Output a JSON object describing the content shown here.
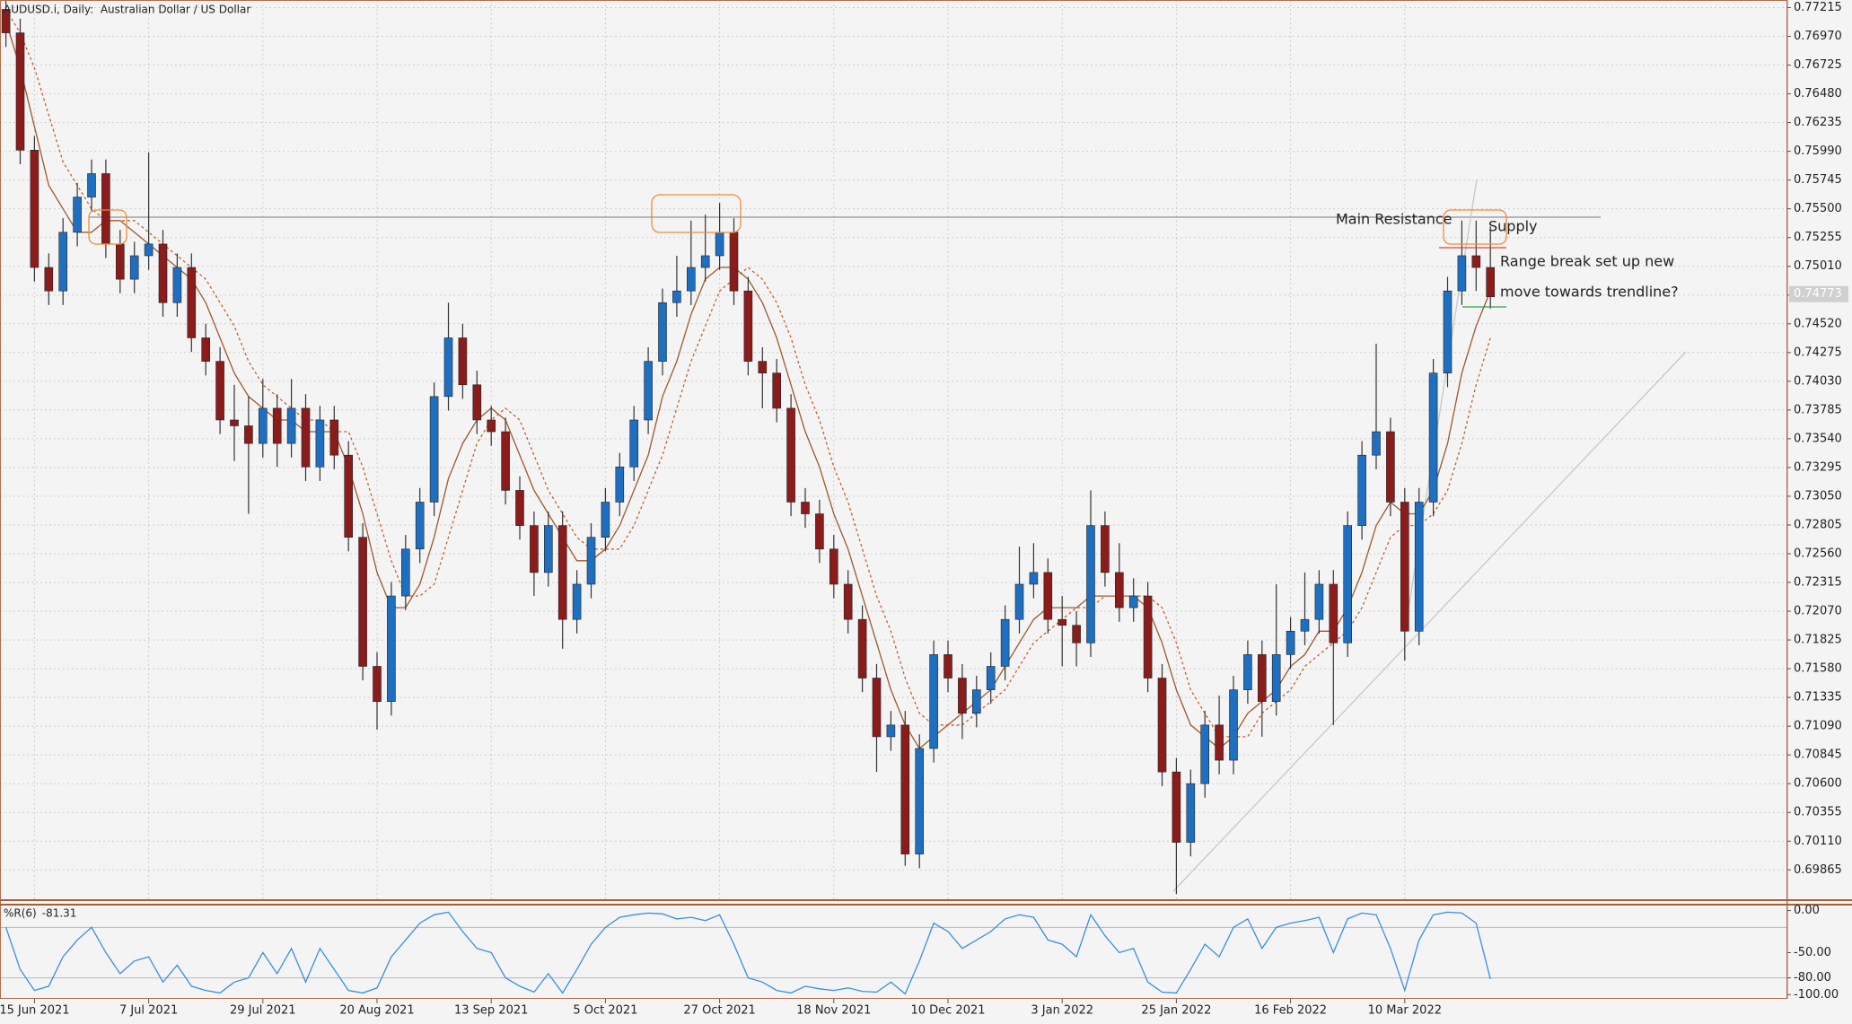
{
  "chart_data": [
    {
      "type": "candlestick",
      "title": "AUDUSD.i, Daily:  Australian Dollar / US Dollar",
      "categories": [
        null,
        null,
        "15 Jun 2021",
        null,
        null,
        null,
        null,
        null,
        null,
        null,
        "7 Jul 2021",
        null,
        null,
        null,
        null,
        null,
        null,
        null,
        "29 Jul 2021",
        null,
        null,
        null,
        null,
        null,
        null,
        null,
        "20 Aug 2021",
        null,
        null,
        null,
        null,
        null,
        null,
        null,
        "13 Sep 2021",
        null,
        null,
        null,
        null,
        null,
        null,
        null,
        "5 Oct 2021",
        null,
        null,
        null,
        null,
        null,
        null,
        null,
        "27 Oct 2021",
        null,
        null,
        null,
        null,
        null,
        null,
        null,
        "18 Nov 2021",
        null,
        null,
        null,
        null,
        null,
        null,
        null,
        "10 Dec 2021",
        null,
        null,
        null,
        null,
        null,
        null,
        null,
        "3 Jan 2022",
        null,
        null,
        null,
        null,
        null,
        null,
        null,
        "25 Jan 2022",
        null,
        null,
        null,
        null,
        null,
        null,
        null,
        "16 Feb 2022",
        null,
        null,
        null,
        null,
        null,
        null,
        null,
        "10 Mar 2022",
        null,
        null,
        null,
        null,
        null,
        null
      ],
      "ohlc": [
        [
          0.772,
          0.7732,
          0.7688,
          0.77
        ],
        [
          0.77,
          0.7712,
          0.7588,
          0.76
        ],
        [
          0.76,
          0.7612,
          0.7488,
          0.75
        ],
        [
          0.75,
          0.7512,
          0.7468,
          0.748
        ],
        [
          0.748,
          0.7542,
          0.7468,
          0.753
        ],
        [
          0.753,
          0.7572,
          0.7518,
          0.756
        ],
        [
          0.756,
          0.7592,
          0.7548,
          0.758
        ],
        [
          0.758,
          0.7592,
          0.7508,
          0.752
        ],
        [
          0.752,
          0.7532,
          0.7478,
          0.749
        ],
        [
          0.749,
          0.7522,
          0.7478,
          0.751
        ],
        [
          0.751,
          0.7598,
          0.7498,
          0.752
        ],
        [
          0.752,
          0.7532,
          0.7458,
          0.747
        ],
        [
          0.747,
          0.7512,
          0.7458,
          0.75
        ],
        [
          0.75,
          0.7512,
          0.7428,
          0.744
        ],
        [
          0.744,
          0.7452,
          0.7408,
          0.742
        ],
        [
          0.742,
          0.7432,
          0.7358,
          0.737
        ],
        [
          0.737,
          0.74,
          0.7335,
          0.7365
        ],
        [
          0.7365,
          0.739,
          0.729,
          0.735
        ],
        [
          0.735,
          0.7405,
          0.7338,
          0.738
        ],
        [
          0.738,
          0.7392,
          0.733,
          0.735
        ],
        [
          0.735,
          0.7405,
          0.7338,
          0.738
        ],
        [
          0.738,
          0.7392,
          0.7318,
          0.733
        ],
        [
          0.733,
          0.7382,
          0.7318,
          0.737
        ],
        [
          0.737,
          0.7382,
          0.7328,
          0.734
        ],
        [
          0.734,
          0.7352,
          0.7258,
          0.727
        ],
        [
          0.727,
          0.7282,
          0.7148,
          0.716
        ],
        [
          0.716,
          0.7172,
          0.7106,
          0.713
        ],
        [
          0.713,
          0.7232,
          0.7118,
          0.722
        ],
        [
          0.722,
          0.7272,
          0.7208,
          0.726
        ],
        [
          0.726,
          0.7312,
          0.7248,
          0.73
        ],
        [
          0.73,
          0.7402,
          0.7288,
          0.739
        ],
        [
          0.739,
          0.747,
          0.7378,
          0.744
        ],
        [
          0.744,
          0.7452,
          0.7388,
          0.74
        ],
        [
          0.74,
          0.7412,
          0.7358,
          0.737
        ],
        [
          0.737,
          0.7382,
          0.7348,
          0.736
        ],
        [
          0.736,
          0.7372,
          0.7298,
          0.731
        ],
        [
          0.731,
          0.7322,
          0.7268,
          0.728
        ],
        [
          0.728,
          0.7292,
          0.722,
          0.724
        ],
        [
          0.724,
          0.7292,
          0.7228,
          0.728
        ],
        [
          0.728,
          0.7292,
          0.7175,
          0.72
        ],
        [
          0.72,
          0.7242,
          0.7188,
          0.723
        ],
        [
          0.723,
          0.7282,
          0.7218,
          0.727
        ],
        [
          0.727,
          0.7312,
          0.7258,
          0.73
        ],
        [
          0.73,
          0.7342,
          0.7288,
          0.733
        ],
        [
          0.733,
          0.7382,
          0.7318,
          0.737
        ],
        [
          0.737,
          0.7432,
          0.7358,
          0.742
        ],
        [
          0.742,
          0.7482,
          0.7408,
          0.747
        ],
        [
          0.747,
          0.751,
          0.7458,
          0.748
        ],
        [
          0.748,
          0.754,
          0.7468,
          0.75
        ],
        [
          0.75,
          0.7545,
          0.7488,
          0.751
        ],
        [
          0.751,
          0.7555,
          0.7498,
          0.753
        ],
        [
          0.753,
          0.7542,
          0.7468,
          0.748
        ],
        [
          0.748,
          0.7492,
          0.7408,
          0.742
        ],
        [
          0.742,
          0.7432,
          0.738,
          0.741
        ],
        [
          0.741,
          0.7422,
          0.7368,
          0.738
        ],
        [
          0.738,
          0.7392,
          0.7288,
          0.73
        ],
        [
          0.73,
          0.7312,
          0.7278,
          0.729
        ],
        [
          0.729,
          0.7302,
          0.7248,
          0.726
        ],
        [
          0.726,
          0.7272,
          0.7218,
          0.723
        ],
        [
          0.723,
          0.7242,
          0.7188,
          0.72
        ],
        [
          0.72,
          0.7212,
          0.7138,
          0.715
        ],
        [
          0.715,
          0.7162,
          0.707,
          0.71
        ],
        [
          0.71,
          0.7122,
          0.7088,
          0.711
        ],
        [
          0.711,
          0.7122,
          0.699,
          0.7
        ],
        [
          0.7,
          0.7102,
          0.6988,
          0.709
        ],
        [
          0.709,
          0.7182,
          0.7078,
          0.717
        ],
        [
          0.717,
          0.7182,
          0.7138,
          0.715
        ],
        [
          0.715,
          0.7162,
          0.7098,
          0.712
        ],
        [
          0.712,
          0.7152,
          0.7108,
          0.714
        ],
        [
          0.714,
          0.7172,
          0.7128,
          0.716
        ],
        [
          0.716,
          0.7212,
          0.7148,
          0.72
        ],
        [
          0.72,
          0.7262,
          0.7188,
          0.723
        ],
        [
          0.723,
          0.7265,
          0.7218,
          0.724
        ],
        [
          0.724,
          0.7252,
          0.7188,
          0.72
        ],
        [
          0.72,
          0.722,
          0.716,
          0.7195
        ],
        [
          0.7195,
          0.7207,
          0.716,
          0.718
        ],
        [
          0.718,
          0.731,
          0.7168,
          0.728
        ],
        [
          0.728,
          0.7292,
          0.7228,
          0.724
        ],
        [
          0.724,
          0.7265,
          0.7198,
          0.721
        ],
        [
          0.721,
          0.7235,
          0.7198,
          0.722
        ],
        [
          0.722,
          0.7232,
          0.7138,
          0.715
        ],
        [
          0.715,
          0.7162,
          0.7058,
          0.707
        ],
        [
          0.707,
          0.7082,
          0.6966,
          0.701
        ],
        [
          0.701,
          0.7072,
          0.6998,
          0.706
        ],
        [
          0.706,
          0.7122,
          0.7048,
          0.711
        ],
        [
          0.711,
          0.7135,
          0.7068,
          0.708
        ],
        [
          0.708,
          0.7152,
          0.7068,
          0.714
        ],
        [
          0.714,
          0.7182,
          0.7128,
          0.717
        ],
        [
          0.717,
          0.7182,
          0.71,
          0.713
        ],
        [
          0.713,
          0.723,
          0.7118,
          0.717
        ],
        [
          0.717,
          0.7202,
          0.7158,
          0.719
        ],
        [
          0.719,
          0.724,
          0.7178,
          0.72
        ],
        [
          0.72,
          0.7242,
          0.7188,
          0.723
        ],
        [
          0.723,
          0.7242,
          0.711,
          0.718
        ],
        [
          0.718,
          0.7292,
          0.7168,
          0.728
        ],
        [
          0.728,
          0.7352,
          0.7268,
          0.734
        ],
        [
          0.734,
          0.7435,
          0.7328,
          0.736
        ],
        [
          0.736,
          0.7372,
          0.7288,
          0.73
        ],
        [
          0.73,
          0.7312,
          0.7165,
          0.719
        ],
        [
          0.719,
          0.7312,
          0.7178,
          0.73
        ],
        [
          0.73,
          0.7422,
          0.7288,
          0.741
        ],
        [
          0.741,
          0.7492,
          0.7398,
          0.748
        ],
        [
          0.748,
          0.754,
          0.7468,
          0.751
        ],
        [
          0.751,
          0.754,
          0.748,
          0.75
        ],
        [
          0.75,
          0.7535,
          0.7465,
          0.7475
        ]
      ],
      "up_color": "#1f6fc0",
      "down_color": "#8b1c1c",
      "wick_color": "#333333",
      "series": [
        {
          "color": "#9a5a2e",
          "style": "solid",
          "values": [
            0.771,
            0.767,
            0.762,
            0.757,
            0.755,
            0.753,
            0.753,
            0.754,
            0.754,
            0.753,
            0.752,
            0.751,
            0.75,
            0.749,
            0.747,
            0.744,
            0.741,
            0.739,
            0.738,
            0.737,
            0.737,
            0.736,
            0.736,
            0.736,
            0.733,
            0.729,
            0.724,
            0.721,
            0.721,
            0.723,
            0.727,
            0.732,
            0.735,
            0.737,
            0.738,
            0.737,
            0.734,
            0.731,
            0.729,
            0.727,
            0.725,
            0.725,
            0.726,
            0.728,
            0.731,
            0.734,
            0.739,
            0.742,
            0.746,
            0.749,
            0.75,
            0.75,
            0.749,
            0.747,
            0.744,
            0.74,
            0.736,
            0.733,
            0.729,
            0.726,
            0.722,
            0.718,
            0.714,
            0.711,
            0.709,
            0.71,
            0.711,
            0.712,
            0.713,
            0.714,
            0.716,
            0.718,
            0.72,
            0.721,
            0.721,
            0.721,
            0.722,
            0.722,
            0.722,
            0.722,
            0.721,
            0.718,
            0.714,
            0.711,
            0.71,
            0.709,
            0.71,
            0.712,
            0.713,
            0.714,
            0.716,
            0.717,
            0.719,
            0.719,
            0.721,
            0.724,
            0.728,
            0.73,
            0.729,
            0.729,
            0.731,
            0.735,
            0.741,
            0.745,
            0.748
          ]
        },
        {
          "color": "#c0602e",
          "style": "dotted",
          "values": [
            0.772,
            0.77,
            0.767,
            0.763,
            0.759,
            0.757,
            0.755,
            0.754,
            0.754,
            0.754,
            0.753,
            0.752,
            0.751,
            0.75,
            0.749,
            0.747,
            0.745,
            0.742,
            0.74,
            0.739,
            0.738,
            0.737,
            0.737,
            0.736,
            0.736,
            0.733,
            0.729,
            0.725,
            0.722,
            0.722,
            0.723,
            0.727,
            0.731,
            0.735,
            0.737,
            0.738,
            0.737,
            0.734,
            0.731,
            0.729,
            0.727,
            0.726,
            0.726,
            0.726,
            0.728,
            0.731,
            0.734,
            0.738,
            0.742,
            0.745,
            0.748,
            0.749,
            0.75,
            0.749,
            0.747,
            0.744,
            0.74,
            0.737,
            0.733,
            0.73,
            0.726,
            0.722,
            0.719,
            0.715,
            0.712,
            0.711,
            0.711,
            0.711,
            0.712,
            0.713,
            0.714,
            0.716,
            0.718,
            0.719,
            0.72,
            0.721,
            0.721,
            0.722,
            0.722,
            0.722,
            0.722,
            0.721,
            0.718,
            0.714,
            0.712,
            0.71,
            0.71,
            0.71,
            0.712,
            0.713,
            0.714,
            0.716,
            0.717,
            0.718,
            0.719,
            0.721,
            0.724,
            0.727,
            0.728,
            0.728,
            0.729,
            0.731,
            0.735,
            0.74,
            0.744
          ]
        }
      ],
      "ylim": [
        0.6963,
        0.7728
      ],
      "yticks": [
        0.77215,
        {
          "value": 0.7697,
          "label": "0.76970"
        },
        0.76725,
        {
          "value": 0.7648,
          "label": "0.76480"
        },
        0.76235,
        {
          "value": 0.7599,
          "label": "0.75990"
        },
        0.75745,
        {
          "value": 0.755,
          "label": "0.75500"
        },
        0.75255,
        {
          "value": 0.7501,
          "label": "0.75010"
        },
        0.74765,
        {
          "value": 0.7452,
          "label": "0.74520"
        },
        0.74275,
        {
          "value": 0.7403,
          "label": "0.74030"
        },
        0.73785,
        {
          "value": 0.7354,
          "label": "0.73540"
        },
        0.73295,
        {
          "value": 0.7305,
          "label": "0.73050"
        },
        0.72805,
        {
          "value": 0.7256,
          "label": "0.72560"
        },
        0.72315,
        {
          "value": 0.7207,
          "label": "0.72070"
        },
        0.71825,
        {
          "value": 0.7158,
          "label": "0.71580"
        },
        0.71335,
        {
          "value": 0.7109,
          "label": "0.71090"
        },
        0.70845,
        {
          "value": 0.706,
          "label": "0.70600"
        },
        0.70355,
        {
          "value": 0.7011,
          "label": "0.70110"
        },
        0.69865
      ],
      "last_price": 0.74773,
      "grid": true,
      "annotations": [
        "Main Resistance",
        "Supply",
        "Range break set up new",
        "move towards trendline?"
      ]
    },
    {
      "type": "line",
      "name": "%R(6)",
      "color": "#3a8ee0",
      "values": [
        -20,
        -70,
        -95,
        -90,
        -55,
        -35,
        -20,
        -50,
        -75,
        -60,
        -55,
        -85,
        -65,
        -90,
        -95,
        -98,
        -85,
        -80,
        -50,
        -75,
        -45,
        -85,
        -45,
        -70,
        -95,
        -98,
        -92,
        -55,
        -35,
        -15,
        -5,
        -2,
        -25,
        -45,
        -50,
        -80,
        -90,
        -97,
        -75,
        -98,
        -70,
        -40,
        -20,
        -8,
        -5,
        -3,
        -4,
        -10,
        -8,
        -12,
        -5,
        -40,
        -80,
        -85,
        -95,
        -98,
        -90,
        -93,
        -95,
        -92,
        -96,
        -97,
        -85,
        -99,
        -60,
        -15,
        -25,
        -45,
        -35,
        -25,
        -10,
        -5,
        -8,
        -35,
        -40,
        -55,
        -5,
        -30,
        -50,
        -45,
        -85,
        -97,
        -98,
        -70,
        -40,
        -55,
        -20,
        -10,
        -45,
        -20,
        -15,
        -12,
        -8,
        -50,
        -10,
        -3,
        -5,
        -45,
        -95,
        -35,
        -5,
        -2,
        -3,
        -15,
        -81.31
      ],
      "ylim": [
        -105,
        7
      ],
      "yticks": [
        {
          "value": 0,
          "label": "0.00"
        },
        {
          "value": -50,
          "label": "-50.00"
        },
        {
          "value": -80,
          "label": "-80.00"
        },
        {
          "value": -100,
          "label": "-100.00"
        }
      ],
      "levels": [
        -20,
        -80
      ]
    }
  ]
}
